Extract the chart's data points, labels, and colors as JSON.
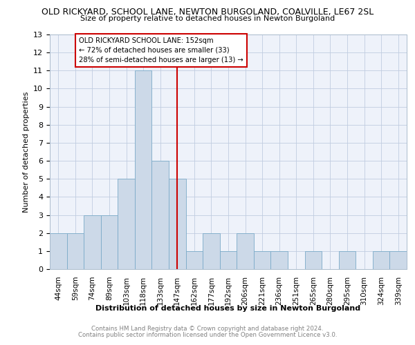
{
  "title": "OLD RICKYARD, SCHOOL LANE, NEWTON BURGOLAND, COALVILLE, LE67 2SL",
  "subtitle": "Size of property relative to detached houses in Newton Burgoland",
  "xlabel": "Distribution of detached houses by size in Newton Burgoland",
  "ylabel": "Number of detached properties",
  "categories": [
    "44sqm",
    "59sqm",
    "74sqm",
    "89sqm",
    "103sqm",
    "118sqm",
    "133sqm",
    "147sqm",
    "162sqm",
    "177sqm",
    "192sqm",
    "206sqm",
    "221sqm",
    "236sqm",
    "251sqm",
    "265sqm",
    "280sqm",
    "295sqm",
    "310sqm",
    "324sqm",
    "339sqm"
  ],
  "values": [
    2,
    2,
    3,
    3,
    5,
    11,
    6,
    5,
    1,
    2,
    1,
    2,
    1,
    1,
    0,
    1,
    0,
    1,
    0,
    1,
    1
  ],
  "bar_color": "#ccd9e8",
  "bar_edge_color": "#7aaac8",
  "vline_x": 7,
  "vline_color": "#cc0000",
  "annotation_lines": [
    "OLD RICKYARD SCHOOL LANE: 152sqm",
    "← 72% of detached houses are smaller (33)",
    "28% of semi-detached houses are larger (13) →"
  ],
  "annotation_box_color": "#cc0000",
  "ylim": [
    0,
    13
  ],
  "yticks": [
    0,
    1,
    2,
    3,
    4,
    5,
    6,
    7,
    8,
    9,
    10,
    11,
    12,
    13
  ],
  "footer_line1": "Contains HM Land Registry data © Crown copyright and database right 2024.",
  "footer_line2": "Contains public sector information licensed under the Open Government Licence v3.0.",
  "grid_color": "#c0cce0",
  "bg_color": "#eef2fa"
}
